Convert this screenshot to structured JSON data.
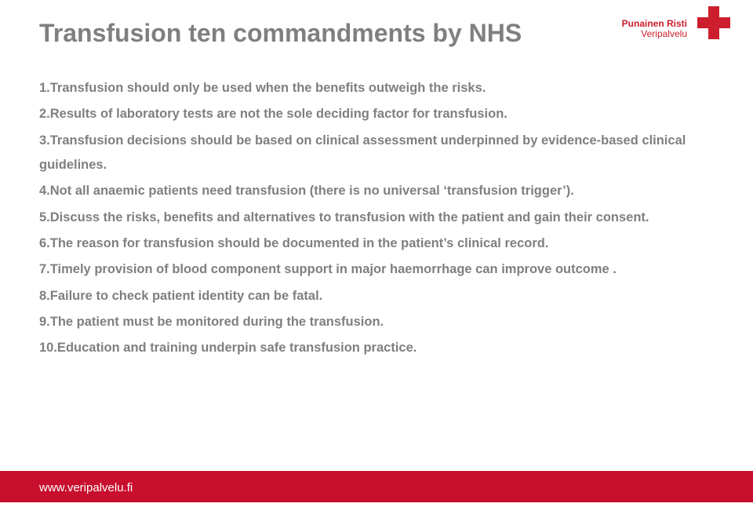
{
  "colors": {
    "title": "#7f7f7f",
    "body_text": "#7f7f7f",
    "logo_main": "#cc1e2c",
    "logo_sub": "#cc1e2c",
    "cross": "#cc1e2c",
    "footer_bar": "#c8102e",
    "footer_url": "#ffffff"
  },
  "title": "Transfusion ten commandments by NHS",
  "logo": {
    "line1": "Punainen Risti",
    "line2": "Veripalvelu"
  },
  "items": [
    "1.Transfusion should only be used when the benefits outweigh the risks.",
    "2.Results of laboratory tests are not the sole deciding factor for transfusion.",
    "3.Transfusion decisions should be based on clinical assessment underpinned by evidence-based clinical guidelines.",
    "4.Not all anaemic patients need transfusion (there is no universal ‘transfusion trigger’).",
    "5.Discuss the risks, benefits and alternatives to transfusion with the patient and gain their consent.",
    "6.The reason for transfusion should be documented in the patient’s clinical record.",
    "7.Timely provision of blood component support in major haemorrhage can improve outcome .",
    "8.Failure to check patient identity can be fatal.",
    "9.The patient must be monitored during the transfusion.",
    "10.Education and training underpin safe transfusion practice."
  ],
  "footer_url": "www.veripalvelu.fi"
}
